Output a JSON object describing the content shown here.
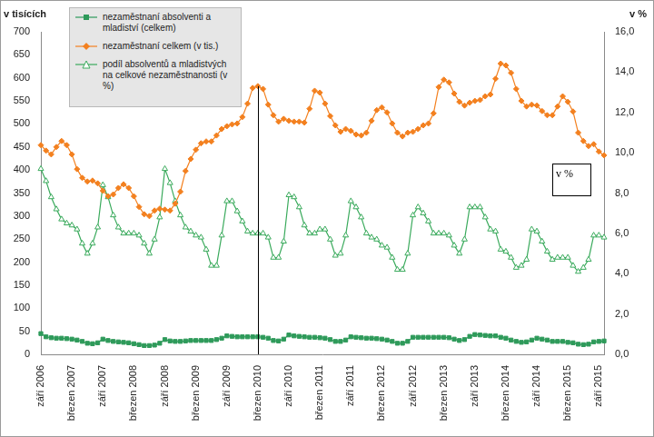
{
  "chart_data": {
    "type": "line",
    "y_label": "v tisících",
    "y2_label": "v %",
    "categories": [
      "září 2006",
      null,
      null,
      null,
      null,
      null,
      "březen 2007",
      null,
      null,
      null,
      null,
      null,
      "září 2007",
      null,
      null,
      null,
      null,
      null,
      "březen 2008",
      null,
      null,
      null,
      null,
      null,
      "září 2008",
      null,
      null,
      null,
      null,
      null,
      "březen 2009",
      null,
      null,
      null,
      null,
      null,
      "září 2009",
      null,
      null,
      null,
      null,
      null,
      "březen 2010",
      null,
      null,
      null,
      null,
      null,
      "září 2010",
      null,
      null,
      null,
      null,
      null,
      "březen 2011",
      null,
      null,
      null,
      null,
      null,
      "září 2011",
      null,
      null,
      null,
      null,
      null,
      "březen 2012",
      null,
      null,
      null,
      null,
      null,
      "září 2012",
      null,
      null,
      null,
      null,
      null,
      "březen 2013",
      null,
      null,
      null,
      null,
      null,
      "září 2013",
      null,
      null,
      null,
      null,
      null,
      "březen 2014",
      null,
      null,
      null,
      null,
      null,
      "září 2014",
      null,
      null,
      null,
      null,
      null,
      "březen 2015",
      null,
      null,
      null,
      null,
      null,
      "září 2015",
      null
    ],
    "series": [
      {
        "name": "nezaměstnaní absolventi a mladiství (celkem)",
        "color": "#2e9a5a",
        "marker": "square",
        "axis": "y",
        "values": [
          45,
          38,
          36,
          35,
          35,
          34,
          33,
          31,
          28,
          24,
          23,
          25,
          33,
          30,
          28,
          27,
          26,
          25,
          23,
          21,
          19,
          19,
          20,
          24,
          32,
          29,
          28,
          28,
          29,
          30,
          30,
          30,
          30,
          30,
          32,
          35,
          40,
          39,
          38,
          38,
          38,
          38,
          38,
          37,
          35,
          30,
          29,
          33,
          42,
          40,
          39,
          38,
          37,
          37,
          36,
          35,
          32,
          28,
          28,
          31,
          38,
          37,
          36,
          35,
          35,
          34,
          33,
          31,
          28,
          24,
          24,
          28,
          37,
          37,
          37,
          37,
          37,
          37,
          37,
          36,
          33,
          30,
          32,
          39,
          43,
          42,
          41,
          40,
          40,
          37,
          35,
          31,
          28,
          26,
          27,
          31,
          35,
          33,
          31,
          28,
          28,
          28,
          26,
          25,
          22,
          21,
          22,
          27,
          28,
          29
        ]
      },
      {
        "name": "nezaměstnaní celkem (v tis.)",
        "color": "#f3801f",
        "marker": "diamond",
        "axis": "y",
        "values": [
          454,
          442,
          434,
          450,
          463,
          454,
          434,
          402,
          383,
          375,
          377,
          371,
          355,
          343,
          347,
          361,
          369,
          361,
          343,
          320,
          304,
          300,
          312,
          316,
          314,
          312,
          327,
          353,
          398,
          424,
          444,
          458,
          462,
          462,
          475,
          489,
          495,
          499,
          501,
          515,
          544,
          578,
          582,
          576,
          542,
          519,
          505,
          511,
          507,
          505,
          505,
          503,
          533,
          572,
          568,
          544,
          517,
          497,
          483,
          489,
          485,
          477,
          475,
          481,
          507,
          530,
          536,
          525,
          501,
          481,
          473,
          481,
          483,
          489,
          497,
          501,
          523,
          580,
          596,
          590,
          566,
          548,
          540,
          546,
          550,
          552,
          560,
          564,
          598,
          631,
          627,
          611,
          576,
          550,
          538,
          542,
          540,
          528,
          519,
          519,
          538,
          560,
          548,
          527,
          481,
          463,
          452,
          456,
          440,
          432
        ]
      },
      {
        "name": "podíl absolventů a mladistvých na celkové nezaměstnanosti (v %)",
        "color": "#3aaa5c",
        "marker": "triangle",
        "axis": "y2",
        "values": [
          9.2,
          8.6,
          7.8,
          7.2,
          6.7,
          6.5,
          6.4,
          6.2,
          5.5,
          5.0,
          5.5,
          6.3,
          8.4,
          7.8,
          6.9,
          6.3,
          6.0,
          6.0,
          6.0,
          5.9,
          5.5,
          5.0,
          5.7,
          6.8,
          9.2,
          8.5,
          7.6,
          6.9,
          6.3,
          6.1,
          5.9,
          5.8,
          5.2,
          4.4,
          4.4,
          5.9,
          7.6,
          7.6,
          7.1,
          6.6,
          6.1,
          6.0,
          6.0,
          6.0,
          5.8,
          4.8,
          4.8,
          5.6,
          7.9,
          7.8,
          7.3,
          6.4,
          6.0,
          6.0,
          6.2,
          6.2,
          5.7,
          4.9,
          5.0,
          5.9,
          7.6,
          7.3,
          6.8,
          6.0,
          5.8,
          5.7,
          5.4,
          5.3,
          4.8,
          4.2,
          4.2,
          5.0,
          6.9,
          7.3,
          7.0,
          6.6,
          6.0,
          6.0,
          6.0,
          5.9,
          5.4,
          5.0,
          5.7,
          7.3,
          7.3,
          7.3,
          6.8,
          6.2,
          6.1,
          5.2,
          5.1,
          4.8,
          4.3,
          4.4,
          4.7,
          6.2,
          6.1,
          5.6,
          5.1,
          4.7,
          4.8,
          4.8,
          4.8,
          4.4,
          4.1,
          4.3,
          4.7,
          5.9,
          5.9,
          5.8
        ]
      }
    ],
    "ylim": [
      0,
      700
    ],
    "yticks": [
      0,
      50,
      100,
      150,
      200,
      250,
      300,
      350,
      400,
      450,
      500,
      550,
      600,
      650,
      700
    ],
    "y2lim": [
      0,
      16
    ],
    "y2ticks": [
      {
        "value": 0,
        "label": "0,0"
      },
      {
        "value": 2,
        "label": "2,0"
      },
      {
        "value": 4,
        "label": "4,0"
      },
      {
        "value": 6,
        "label": "6,0"
      },
      {
        "value": 8,
        "label": "8,0"
      },
      {
        "value": 10,
        "label": "10,0"
      },
      {
        "value": 12,
        "label": "12,0"
      },
      {
        "value": 14,
        "label": "14,0"
      },
      {
        "value": 16,
        "label": "16,0"
      }
    ],
    "grid": false,
    "legend": "top-left",
    "annotations": [
      {
        "text": "v %"
      },
      {
        "x": "březen 2010"
      }
    ]
  }
}
